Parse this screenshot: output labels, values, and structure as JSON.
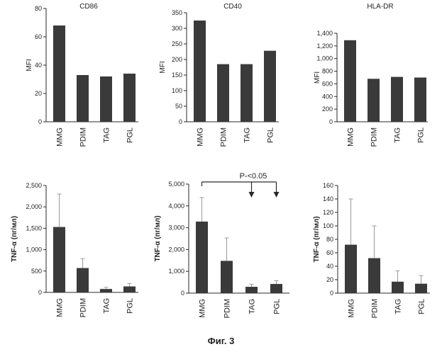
{
  "caption": "Фиг. 3",
  "colors": {
    "bar": "#3a3a3a",
    "axis": "#2a2a2a",
    "error": "#9a9a9a"
  },
  "chart_data": [
    {
      "type": "bar",
      "title": "CD86",
      "ylabel": "MFI",
      "categories": [
        "MMG",
        "PDIM",
        "TAG",
        "PGL"
      ],
      "values": [
        68,
        33,
        32,
        34
      ],
      "ylim": [
        0,
        80
      ],
      "yticks": [
        0,
        20,
        40,
        60,
        80
      ],
      "ytick_labels": [
        "0",
        "20",
        "40",
        "60",
        "80"
      ],
      "grid": false
    },
    {
      "type": "bar",
      "title": "CD40",
      "ylabel": "MFI",
      "categories": [
        "MMG",
        "PDIM",
        "TAG",
        "PGL"
      ],
      "values": [
        325,
        185,
        185,
        228
      ],
      "ylim": [
        0,
        350
      ],
      "yticks": [
        0,
        50,
        100,
        150,
        200,
        250,
        300,
        350
      ],
      "ytick_labels": [
        "0",
        "50",
        "100",
        "150",
        "200",
        "250",
        "300",
        "350"
      ],
      "grid": false
    },
    {
      "type": "bar",
      "title": "HLA-DR",
      "ylabel": "MFI",
      "categories": [
        "MMG",
        "PDIM",
        "TAG",
        "PGL"
      ],
      "values": [
        1290,
        680,
        710,
        700
      ],
      "ylim": [
        0,
        1400
      ],
      "yticks": [
        0,
        200,
        400,
        600,
        800,
        1000,
        1200,
        1400
      ],
      "ytick_labels": [
        "0",
        "200",
        "400",
        "600",
        "800",
        "1,000",
        "1,200",
        "1,400"
      ],
      "grid": false
    },
    {
      "type": "bar",
      "title": "",
      "ylabel": "TNF-α (пг/мл)",
      "categories": [
        "MMG",
        "PDIM",
        "TAG",
        "PGL"
      ],
      "values": [
        1530,
        570,
        80,
        140
      ],
      "errors": [
        770,
        220,
        40,
        70
      ],
      "ylim": [
        0,
        2500
      ],
      "yticks": [
        0,
        500,
        1000,
        1500,
        2000,
        2500
      ],
      "ytick_labels": [
        "0",
        "500",
        "1,000",
        "1,500",
        "2,000",
        "2,500"
      ],
      "grid": false
    },
    {
      "type": "bar",
      "title": "",
      "ylabel": "TNF-α (пг/мл)",
      "categories": [
        "MMG",
        "PDIM",
        "TAG",
        "PGL"
      ],
      "values": [
        3280,
        1480,
        290,
        420
      ],
      "errors": [
        1100,
        1050,
        120,
        150
      ],
      "ylim": [
        0,
        5000
      ],
      "yticks": [
        0,
        1000,
        2000,
        3000,
        4000,
        5000
      ],
      "ytick_labels": [
        "0",
        "1,000",
        "2,000",
        "3,000",
        "4,000",
        "5,000"
      ],
      "grid": false,
      "annotation": {
        "text": "P-<0.05",
        "from_category": "MMG",
        "to_categories": [
          "TAG",
          "PGL"
        ]
      }
    },
    {
      "type": "bar",
      "title": "",
      "ylabel": "TNF-α (пг/мл)",
      "categories": [
        "MMG",
        "PDIM",
        "TAG",
        "PGL"
      ],
      "values": [
        72,
        52,
        17,
        14
      ],
      "errors": [
        68,
        48,
        16,
        12
      ],
      "ylim": [
        0,
        160
      ],
      "yticks": [
        0,
        20,
        40,
        60,
        80,
        100,
        120,
        140,
        160
      ],
      "ytick_labels": [
        "0",
        "20",
        "40",
        "60",
        "80",
        "100",
        "120",
        "140",
        "160"
      ],
      "grid": false
    }
  ]
}
